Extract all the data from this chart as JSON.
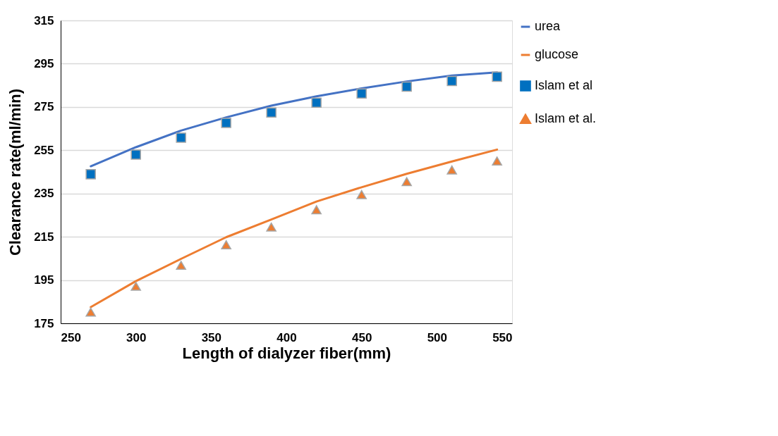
{
  "chart_data": {
    "type": "line",
    "xlabel": "Length of dialyzer fiber(mm)",
    "ylabel": "Clearance rate(ml/min)",
    "xlim": [
      250,
      550
    ],
    "xticks": [
      250,
      300,
      350,
      400,
      450,
      500,
      550
    ],
    "ylim": [
      175,
      315
    ],
    "yticks": [
      175,
      195,
      215,
      235,
      255,
      275,
      295,
      315
    ],
    "grid": "y",
    "legend": "right",
    "series": [
      {
        "name": "urea",
        "color": "#4472c4",
        "marker": "none",
        "x": [
          270,
          300,
          330,
          360,
          390,
          420,
          450,
          480,
          510,
          540
        ],
        "values": [
          247.6,
          256.4,
          264.1,
          270.2,
          275.6,
          279.9,
          283.6,
          286.8,
          289.5,
          291
        ]
      },
      {
        "name": "glucose",
        "color": "#ed7d31",
        "marker": "none",
        "x": [
          270,
          300,
          330,
          360,
          390,
          420,
          450,
          480,
          510,
          540
        ],
        "values": [
          182.5,
          194.5,
          204.8,
          214.8,
          223,
          231.3,
          237.9,
          244.1,
          249.8,
          255.3
        ]
      },
      {
        "name": "Islam et al",
        "type": "scatter",
        "color": "#0070c0",
        "marker": "square",
        "x": [
          270,
          300,
          330,
          360,
          390,
          420,
          450,
          480,
          510,
          540
        ],
        "values": [
          243.9,
          253,
          260.8,
          267.6,
          272.4,
          277,
          281.2,
          284.4,
          287,
          289
        ]
      },
      {
        "name": "Islam et al.",
        "type": "scatter",
        "color": "#ed7d31",
        "marker": "triangle",
        "x": [
          270,
          300,
          330,
          360,
          390,
          420,
          450,
          480,
          510,
          540
        ],
        "values": [
          180.2,
          192.1,
          201.8,
          211.3,
          219.5,
          227.5,
          234.5,
          240.5,
          245.9,
          250
        ]
      }
    ]
  }
}
